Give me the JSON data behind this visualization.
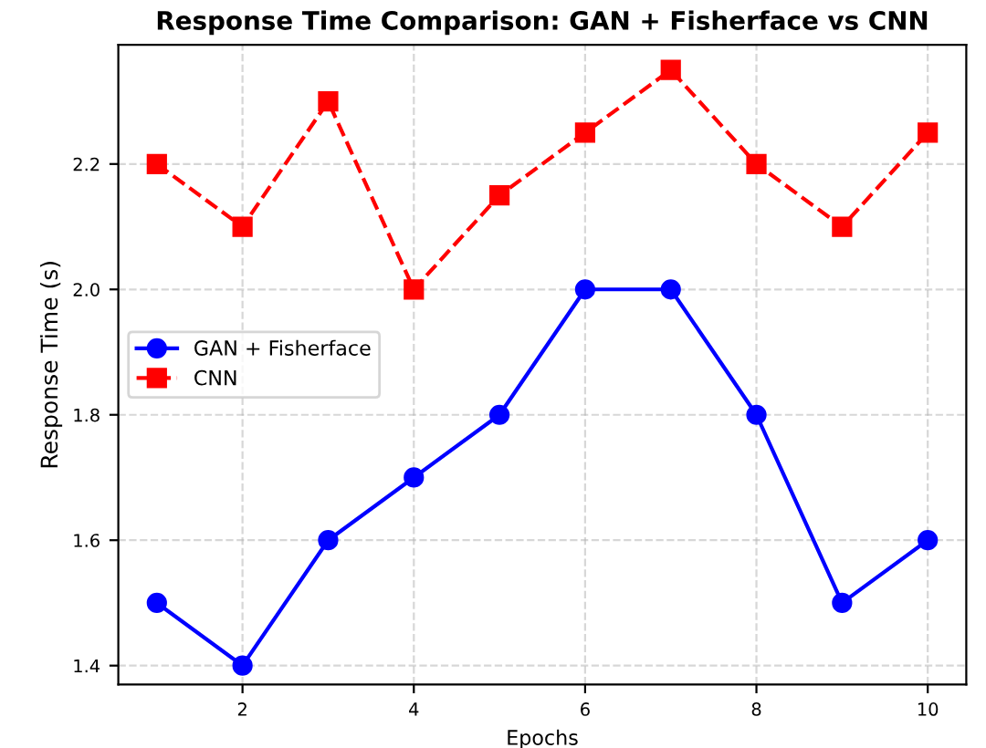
{
  "chart_data": {
    "type": "line",
    "title": "Response Time Comparison: GAN + Fisherface vs CNN",
    "xlabel": "Epochs",
    "ylabel": "Response Time (s)",
    "x": [
      1,
      2,
      3,
      4,
      5,
      6,
      7,
      8,
      9,
      10
    ],
    "series": [
      {
        "name": "GAN + Fisherface",
        "color": "#0000ff",
        "values": [
          1.5,
          1.4,
          1.6,
          1.7,
          1.8,
          2.0,
          2.0,
          1.8,
          1.5,
          1.6
        ],
        "marker": "circle",
        "line_style": "solid"
      },
      {
        "name": "CNN",
        "color": "#ff0000",
        "values": [
          2.2,
          2.1,
          2.3,
          2.0,
          2.15,
          2.25,
          2.35,
          2.2,
          2.1,
          2.25
        ],
        "marker": "square",
        "line_style": "dashed"
      }
    ],
    "xlim": [
      0.55,
      10.45
    ],
    "ylim": [
      1.37,
      2.39
    ],
    "xticks": [
      2,
      4,
      6,
      8,
      10
    ],
    "yticks": [
      1.4,
      1.6,
      1.8,
      {
        "value": 2.0,
        "label": "2.0"
      },
      2.2
    ],
    "grid": true,
    "legend": "left"
  }
}
